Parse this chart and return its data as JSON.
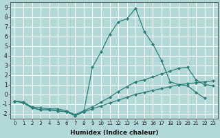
{
  "xlabel": "Humidex (Indice chaleur)",
  "background_color": "#b2d8d8",
  "grid_color": "#ffffff",
  "line_color": "#2d7d78",
  "xlim": [
    -0.5,
    23.5
  ],
  "ylim": [
    -2.5,
    9.5
  ],
  "xticks": [
    0,
    1,
    2,
    3,
    4,
    5,
    6,
    7,
    8,
    9,
    10,
    11,
    12,
    13,
    14,
    15,
    16,
    17,
    18,
    19,
    20,
    21,
    22,
    23
  ],
  "yticks": [
    -2,
    -1,
    0,
    1,
    2,
    3,
    4,
    5,
    6,
    7,
    8,
    9
  ],
  "series": [
    {
      "x": [
        0,
        1,
        2,
        3,
        4,
        5,
        6,
        7,
        8,
        9,
        10,
        11,
        12,
        13,
        14,
        15,
        16,
        17,
        18,
        19,
        20,
        21,
        22,
        23
      ],
      "y": [
        -0.7,
        -0.8,
        -1.4,
        -1.6,
        -1.6,
        -1.7,
        -1.8,
        -2.2,
        -1.8,
        2.8,
        4.4,
        6.2,
        7.5,
        7.8,
        8.9,
        6.5,
        5.2,
        3.5,
        1.3,
        1.0,
        0.9,
        0.2,
        -0.4,
        null
      ]
    },
    {
      "x": [
        0,
        1,
        2,
        3,
        4,
        5,
        6,
        7,
        8,
        9,
        10,
        11,
        12,
        13,
        14,
        15,
        16,
        17,
        18,
        19,
        20,
        21,
        22,
        23
      ],
      "y": [
        -0.7,
        -0.8,
        -1.3,
        -1.4,
        -1.5,
        -1.5,
        -1.7,
        -2.1,
        -1.7,
        -1.3,
        -0.8,
        -0.3,
        0.3,
        0.8,
        1.3,
        1.5,
        1.8,
        2.1,
        2.4,
        2.7,
        2.8,
        1.5,
        1.0,
        0.9
      ]
    },
    {
      "x": [
        0,
        1,
        2,
        3,
        4,
        5,
        6,
        7,
        8,
        9,
        10,
        11,
        12,
        13,
        14,
        15,
        16,
        17,
        18,
        19,
        20,
        21,
        22,
        23
      ],
      "y": [
        -0.7,
        -0.9,
        -1.4,
        -1.6,
        -1.6,
        -1.7,
        -1.8,
        -2.2,
        -1.8,
        -1.5,
        -1.2,
        -0.9,
        -0.6,
        -0.3,
        0.0,
        0.2,
        0.4,
        0.6,
        0.8,
        1.0,
        1.1,
        1.2,
        1.3,
        1.4
      ]
    }
  ]
}
